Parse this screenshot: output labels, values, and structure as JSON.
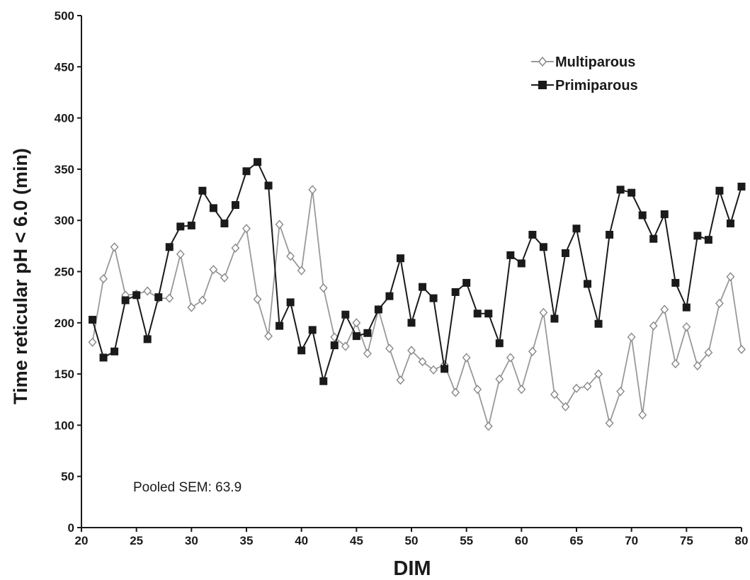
{
  "chart_data": {
    "type": "line",
    "title": "",
    "xlabel": "DIM",
    "ylabel": "Time reticular pH < 6.0 (min)",
    "xlim": [
      20,
      80
    ],
    "ylim": [
      0,
      500
    ],
    "x_ticks": [
      "20",
      "25",
      "30",
      "35",
      "40",
      "45",
      "50",
      "55",
      "60",
      "65",
      "70",
      "75",
      "80"
    ],
    "y_ticks": [
      "0",
      "50",
      "100",
      "150",
      "200",
      "250",
      "300",
      "350",
      "400",
      "450",
      "500"
    ],
    "grid": false,
    "legend_position": "top-right",
    "annotation": "Pooled SEM: 63.9",
    "x": [
      21,
      22,
      23,
      24,
      25,
      26,
      27,
      28,
      29,
      30,
      31,
      32,
      33,
      34,
      35,
      36,
      37,
      38,
      39,
      40,
      41,
      42,
      43,
      44,
      45,
      46,
      47,
      48,
      49,
      50,
      51,
      52,
      53,
      54,
      55,
      56,
      57,
      58,
      59,
      60,
      61,
      62,
      63,
      64,
      65,
      66,
      67,
      68,
      69,
      70,
      71,
      72,
      73,
      74,
      75,
      76,
      77,
      78,
      79,
      80
    ],
    "series": [
      {
        "name": "Multiparous",
        "color": "#999999",
        "marker": "diamond-open",
        "values": [
          181,
          243,
          274,
          227,
          228,
          231,
          224,
          224,
          267,
          215,
          222,
          252,
          244,
          273,
          292,
          223,
          187,
          296,
          265,
          251,
          330,
          234,
          186,
          177,
          200,
          170,
          213,
          175,
          144,
          173,
          162,
          154,
          159,
          132,
          166,
          135,
          99,
          145,
          166,
          135,
          172,
          210,
          130,
          118,
          136,
          138,
          150,
          102,
          133,
          186,
          110,
          197,
          213,
          160,
          196,
          158,
          171,
          219,
          245,
          174
        ]
      },
      {
        "name": "Primiparous",
        "color": "#1a1a1a",
        "marker": "square-filled",
        "values": [
          203,
          166,
          172,
          222,
          227,
          184,
          225,
          274,
          294,
          295,
          329,
          312,
          297,
          315,
          348,
          357,
          334,
          197,
          220,
          173,
          193,
          143,
          178,
          208,
          187,
          190,
          213,
          226,
          263,
          200,
          235,
          224,
          155,
          230,
          239,
          209,
          209,
          180,
          266,
          258,
          286,
          274,
          204,
          268,
          292,
          238,
          199,
          286,
          330,
          327,
          305,
          282,
          306,
          239,
          215,
          285,
          281,
          329,
          297,
          333
        ]
      }
    ]
  }
}
